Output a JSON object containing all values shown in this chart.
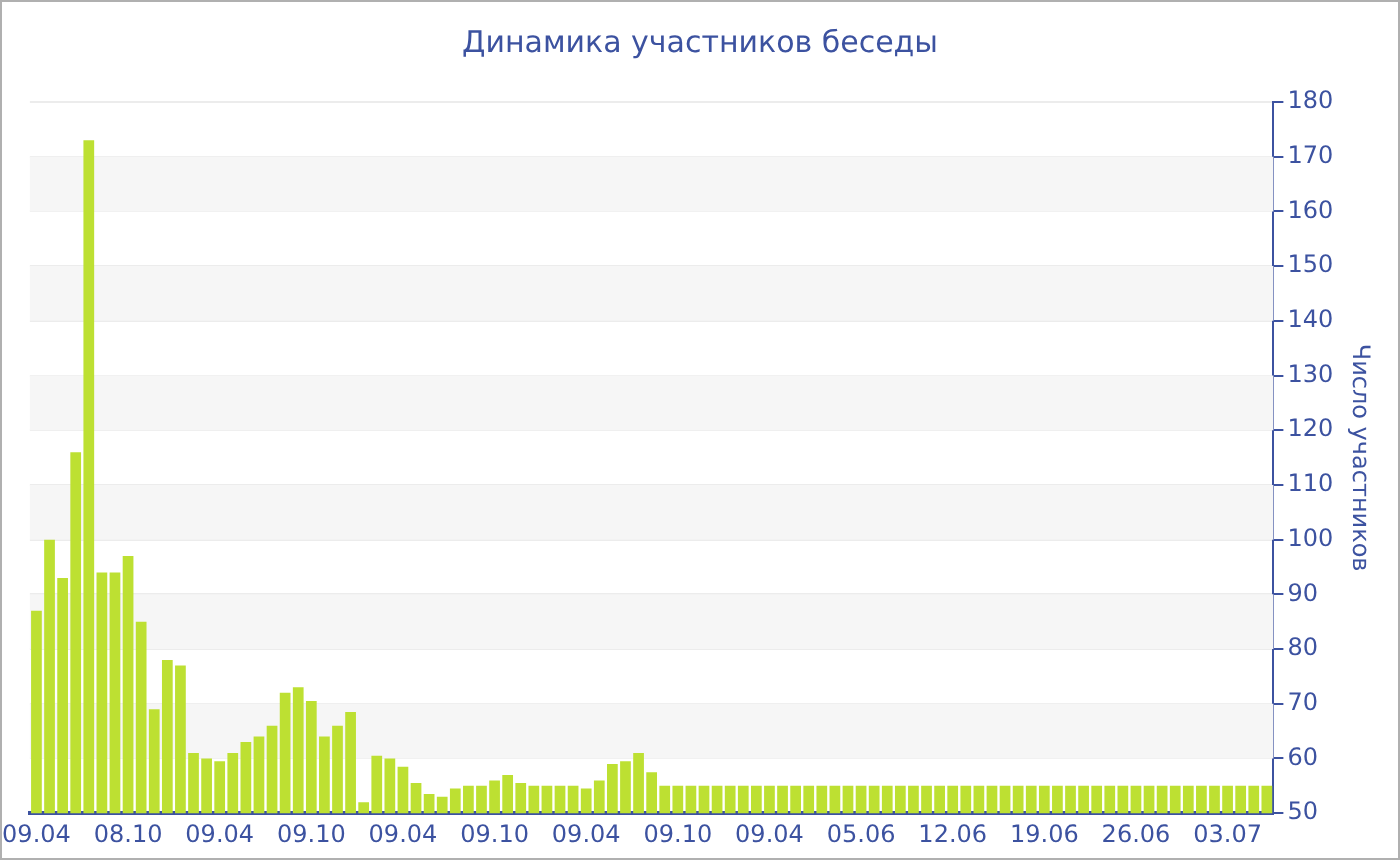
{
  "chart_data": {
    "type": "bar",
    "title": "Динамика участников беседы",
    "ylabel": "Число участников",
    "categories": [
      "09.04",
      null,
      null,
      null,
      null,
      null,
      null,
      "08.10",
      null,
      null,
      null,
      null,
      null,
      null,
      "09.04",
      null,
      null,
      null,
      null,
      null,
      null,
      "09.10",
      null,
      null,
      null,
      null,
      null,
      null,
      "09.04",
      null,
      null,
      null,
      null,
      null,
      null,
      "09.10",
      null,
      null,
      null,
      null,
      null,
      null,
      "09.04",
      null,
      null,
      null,
      null,
      null,
      null,
      "09.10",
      null,
      null,
      null,
      null,
      null,
      null,
      "09.04",
      null,
      null,
      null,
      null,
      null,
      null,
      "05.06",
      null,
      null,
      null,
      null,
      null,
      null,
      "12.06",
      null,
      null,
      null,
      null,
      null,
      null,
      "19.06",
      null,
      null,
      null,
      null,
      null,
      null,
      "26.06",
      null,
      null,
      null,
      null,
      null,
      null,
      "03.07",
      null,
      null,
      null
    ],
    "values": [
      87,
      100,
      93,
      116,
      173,
      94,
      94,
      97,
      85,
      69,
      78,
      77,
      61,
      60,
      59.5,
      61,
      63,
      64,
      66,
      72,
      73,
      70.5,
      64,
      66,
      68.5,
      52,
      60.5,
      60,
      58.5,
      55.5,
      53.5,
      53,
      54.5,
      55,
      55,
      56,
      57,
      55.5,
      55,
      55,
      55,
      55,
      54.5,
      56,
      59,
      59.5,
      61,
      57.5,
      55,
      55,
      55,
      55,
      55,
      55,
      55,
      55,
      55,
      55,
      55,
      55,
      55,
      55,
      55,
      55,
      55,
      55,
      55,
      55,
      55,
      55,
      55,
      55,
      55,
      55,
      55,
      55,
      55,
      55,
      55,
      55,
      55,
      55,
      55,
      55,
      55,
      55,
      55,
      55,
      55,
      55,
      55,
      55,
      55,
      55,
      55
    ],
    "color": "#bde032",
    "ylim": [
      50,
      180
    ],
    "yticks": [
      50,
      60,
      70,
      80,
      90,
      100,
      110,
      120,
      130,
      140,
      150,
      160,
      170,
      180
    ],
    "grid": "y",
    "legend": false
  }
}
